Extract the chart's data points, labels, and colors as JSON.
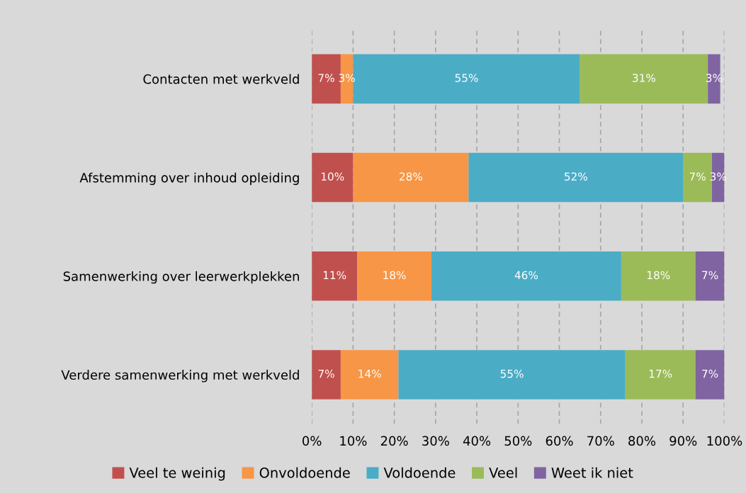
{
  "chart_data": {
    "type": "bar",
    "orientation": "horizontal",
    "stacked": true,
    "categories": [
      "Contacten met werkveld",
      "Afstemming over inhoud opleiding",
      "Samenwerking over leerwerkplekken",
      "Verdere samenwerking met werkveld"
    ],
    "series": [
      {
        "name": "Veel te weinig",
        "color": "#c0504d",
        "values": [
          7,
          10,
          11,
          7
        ],
        "value_labels": [
          "7%",
          "10%",
          "11%",
          "7%"
        ]
      },
      {
        "name": "Onvoldoende",
        "color": "#f79646",
        "values": [
          3,
          28,
          18,
          14
        ],
        "value_labels": [
          "3%",
          "28%",
          "18%",
          "14%"
        ]
      },
      {
        "name": "Voldoende",
        "color": "#4bacc6",
        "values": [
          55,
          52,
          46,
          55
        ],
        "value_labels": [
          "55%",
          "52%",
          "46%",
          "55%"
        ]
      },
      {
        "name": "Veel",
        "color": "#9bbb59",
        "values": [
          31,
          7,
          18,
          17
        ],
        "value_labels": [
          "31%",
          "7%",
          "18%",
          "17%"
        ]
      },
      {
        "name": "Weet ik niet",
        "color": "#8064a2",
        "values": [
          3,
          3,
          7,
          7
        ],
        "value_labels": [
          "3%",
          "3%",
          "7%",
          "7%"
        ]
      }
    ],
    "xlim": [
      0,
      100
    ],
    "xticks": [
      {
        "value": 0,
        "label": "0%"
      },
      {
        "value": 10,
        "label": "10%"
      },
      {
        "value": 20,
        "label": "20%"
      },
      {
        "value": 30,
        "label": "30%"
      },
      {
        "value": 40,
        "label": "40%"
      },
      {
        "value": 50,
        "label": "50%"
      },
      {
        "value": 60,
        "label": "60%"
      },
      {
        "value": 70,
        "label": "70%"
      },
      {
        "value": 80,
        "label": "80%"
      },
      {
        "value": 90,
        "label": "90%"
      },
      {
        "value": 100,
        "label": "100%"
      }
    ],
    "grid": "x",
    "legend": "bottom"
  }
}
